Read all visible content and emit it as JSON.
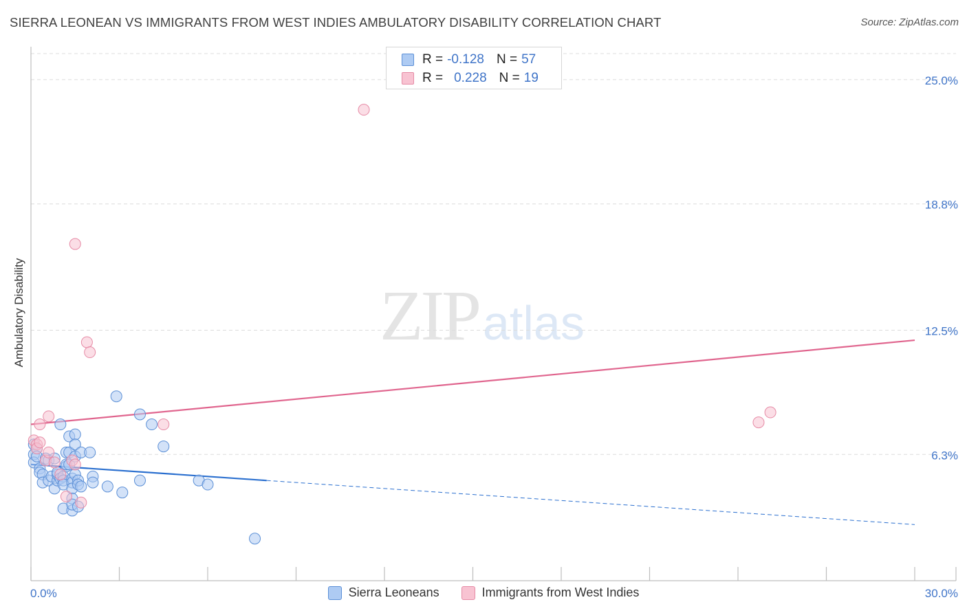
{
  "header": {
    "title": "SIERRA LEONEAN VS IMMIGRANTS FROM WEST INDIES AMBULATORY DISABILITY CORRELATION CHART",
    "source": "Source: ZipAtlas.com"
  },
  "watermark": {
    "zip": "ZIP",
    "atlas": "atlas"
  },
  "legend": {
    "r_label": "R =",
    "n_label": "N =",
    "rows": [
      {
        "r": "-0.128",
        "n": "57"
      },
      {
        "r": "0.228",
        "n": "19"
      }
    ]
  },
  "colors": {
    "blue_fill": "#aecbf3",
    "blue_stroke": "#5b8fd6",
    "blue_line": "#2a6fcf",
    "pink_fill": "#f8c3d2",
    "pink_stroke": "#e68aa5",
    "pink_line": "#e0658e",
    "axis_text": "#3f74c8",
    "grid": "#dcdcdc"
  },
  "chart_data": {
    "type": "scatter",
    "title": "SIERRA LEONEAN VS IMMIGRANTS FROM WEST INDIES AMBULATORY DISABILITY CORRELATION CHART",
    "xlabel": "",
    "ylabel": "Ambulatory Disability",
    "xlim": [
      0,
      30
    ],
    "ylim": [
      0,
      26.3
    ],
    "x_tick_labels": [
      "0.0%",
      "30.0%"
    ],
    "y_ticks": [
      6.3,
      12.5,
      18.8,
      25.0
    ],
    "y_tick_labels": [
      "6.3%",
      "12.5%",
      "18.8%",
      "25.0%"
    ],
    "series": [
      {
        "name": "Sierra Leoneans",
        "r": -0.128,
        "n": 57,
        "trend": {
          "x0": 0,
          "y0": 5.8,
          "x1": 8,
          "y1": 5.0,
          "x_end": 30,
          "y_end": 2.8
        },
        "points": [
          [
            0.1,
            6.8
          ],
          [
            0.1,
            6.3
          ],
          [
            0.1,
            5.9
          ],
          [
            0.2,
            6.6
          ],
          [
            0.2,
            6.2
          ],
          [
            0.3,
            5.6
          ],
          [
            0.3,
            5.4
          ],
          [
            0.4,
            5.3
          ],
          [
            0.4,
            4.9
          ],
          [
            0.5,
            6.1
          ],
          [
            0.6,
            5.0
          ],
          [
            0.6,
            6.0
          ],
          [
            0.7,
            5.2
          ],
          [
            0.8,
            4.6
          ],
          [
            0.8,
            6.1
          ],
          [
            0.9,
            5.0
          ],
          [
            0.9,
            5.3
          ],
          [
            0.9,
            5.4
          ],
          [
            1.0,
            7.8
          ],
          [
            1.0,
            5.1
          ],
          [
            1.1,
            3.6
          ],
          [
            1.1,
            5.2
          ],
          [
            1.2,
            6.4
          ],
          [
            1.2,
            5.7
          ],
          [
            1.2,
            5.8
          ],
          [
            1.1,
            5.0
          ],
          [
            1.1,
            4.8
          ],
          [
            1.3,
            7.2
          ],
          [
            1.3,
            6.4
          ],
          [
            1.3,
            5.8
          ],
          [
            1.4,
            3.5
          ],
          [
            1.5,
            7.3
          ],
          [
            1.5,
            6.8
          ],
          [
            1.4,
            5.1
          ],
          [
            1.4,
            4.9
          ],
          [
            1.4,
            4.6
          ],
          [
            1.5,
            6.2
          ],
          [
            1.5,
            5.3
          ],
          [
            1.4,
            4.1
          ],
          [
            1.4,
            3.8
          ],
          [
            1.6,
            3.7
          ],
          [
            1.7,
            6.4
          ],
          [
            1.6,
            5.0
          ],
          [
            1.6,
            4.8
          ],
          [
            1.7,
            4.7
          ],
          [
            2.0,
            6.4
          ],
          [
            2.1,
            5.2
          ],
          [
            2.1,
            4.9
          ],
          [
            2.6,
            4.7
          ],
          [
            2.9,
            9.2
          ],
          [
            3.1,
            4.4
          ],
          [
            3.7,
            8.3
          ],
          [
            3.7,
            5.0
          ],
          [
            4.1,
            7.8
          ],
          [
            4.5,
            6.7
          ],
          [
            5.7,
            5.0
          ],
          [
            6.0,
            4.8
          ],
          [
            7.6,
            2.1
          ]
        ]
      },
      {
        "name": "Immigrants from West Indies",
        "r": 0.228,
        "n": 19,
        "trend": {
          "x0": 0,
          "y0": 7.8,
          "x1": 30,
          "y1": 12.0
        },
        "points": [
          [
            0.1,
            7.0
          ],
          [
            0.2,
            6.8
          ],
          [
            0.2,
            6.6
          ],
          [
            0.3,
            6.9
          ],
          [
            0.3,
            7.8
          ],
          [
            0.5,
            6.0
          ],
          [
            0.6,
            6.4
          ],
          [
            0.6,
            8.2
          ],
          [
            0.8,
            5.9
          ],
          [
            1.0,
            5.3
          ],
          [
            1.2,
            4.2
          ],
          [
            1.4,
            6.0
          ],
          [
            1.5,
            5.8
          ],
          [
            1.5,
            16.8
          ],
          [
            1.7,
            3.9
          ],
          [
            1.9,
            11.9
          ],
          [
            2.0,
            11.4
          ],
          [
            4.5,
            7.8
          ],
          [
            11.3,
            23.5
          ],
          [
            24.7,
            7.9
          ],
          [
            25.1,
            8.4
          ]
        ]
      }
    ]
  },
  "bottom_legend": {
    "items": [
      {
        "label": "Sierra Leoneans"
      },
      {
        "label": "Immigrants from West Indies"
      }
    ]
  }
}
